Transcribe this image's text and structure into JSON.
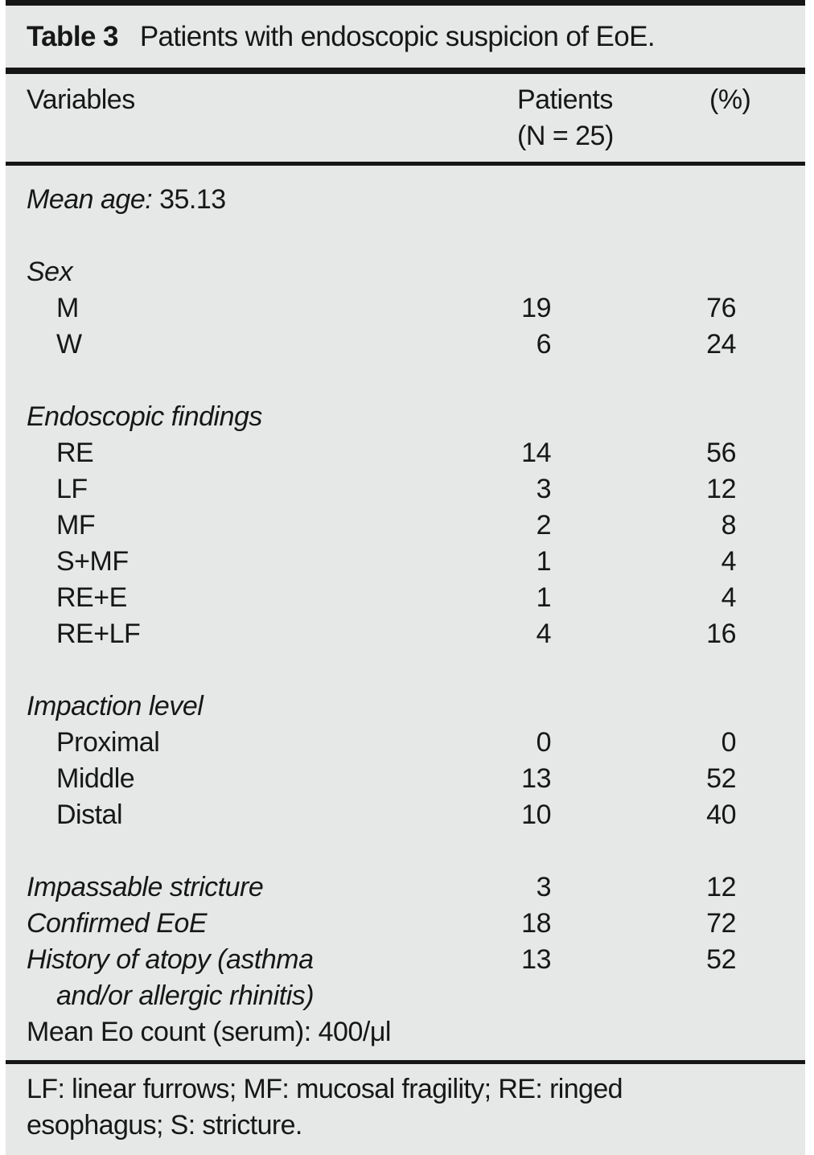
{
  "title": {
    "label": "Table 3",
    "caption": "Patients with endoscopic suspicion of EoE."
  },
  "columns": {
    "variables": "Variables",
    "patients_line1": "Patients",
    "patients_line2": "(N = 25)",
    "percent": "(%)"
  },
  "rows": [
    {
      "type": "mixed",
      "label": "Mean age:",
      "label_roman": " 35.13",
      "patients": "",
      "percent": ""
    },
    {
      "type": "spacer"
    },
    {
      "type": "group",
      "label": "Sex",
      "patients": "",
      "percent": ""
    },
    {
      "type": "item",
      "label": "M",
      "patients": "19",
      "percent": "76"
    },
    {
      "type": "item",
      "label": "W",
      "patients": "6",
      "percent": "24"
    },
    {
      "type": "spacer"
    },
    {
      "type": "group",
      "label": "Endoscopic findings",
      "patients": "",
      "percent": ""
    },
    {
      "type": "item",
      "label": "RE",
      "patients": "14",
      "percent": "56"
    },
    {
      "type": "item",
      "label": "LF",
      "patients": "3",
      "percent": "12"
    },
    {
      "type": "item",
      "label": "MF",
      "patients": "2",
      "percent": "8"
    },
    {
      "type": "item",
      "label": "S+MF",
      "patients": "1",
      "percent": "4"
    },
    {
      "type": "item",
      "label": "RE+E",
      "patients": "1",
      "percent": "4"
    },
    {
      "type": "item",
      "label": "RE+LF",
      "patients": "4",
      "percent": "16"
    },
    {
      "type": "spacer"
    },
    {
      "type": "group",
      "label": "Impaction level",
      "patients": "",
      "percent": ""
    },
    {
      "type": "item",
      "label": "Proximal",
      "patients": "0",
      "percent": "0"
    },
    {
      "type": "item",
      "label": "Middle",
      "patients": "13",
      "percent": "52"
    },
    {
      "type": "item",
      "label": "Distal",
      "patients": "10",
      "percent": "40"
    },
    {
      "type": "spacer"
    },
    {
      "type": "group",
      "label": "Impassable stricture",
      "patients": "3",
      "percent": "12"
    },
    {
      "type": "group",
      "label": "Confirmed EoE",
      "patients": "18",
      "percent": "72"
    },
    {
      "type": "group",
      "label": "History of atopy (asthma",
      "patients": "13",
      "percent": "52"
    },
    {
      "type": "group-cont",
      "label": "and/or allergic rhinitis)",
      "patients": "",
      "percent": ""
    },
    {
      "type": "plain",
      "label": "Mean Eo count (serum): 400/μl",
      "patients": "",
      "percent": ""
    }
  ],
  "footnote": {
    "line1": "LF: linear furrows; MF: mucosal fragility; RE: ringed",
    "line2": "esophagus; S: stricture."
  },
  "colors": {
    "panel_background": "#e6e7e7",
    "rule": "#161616",
    "text": "#171717"
  }
}
